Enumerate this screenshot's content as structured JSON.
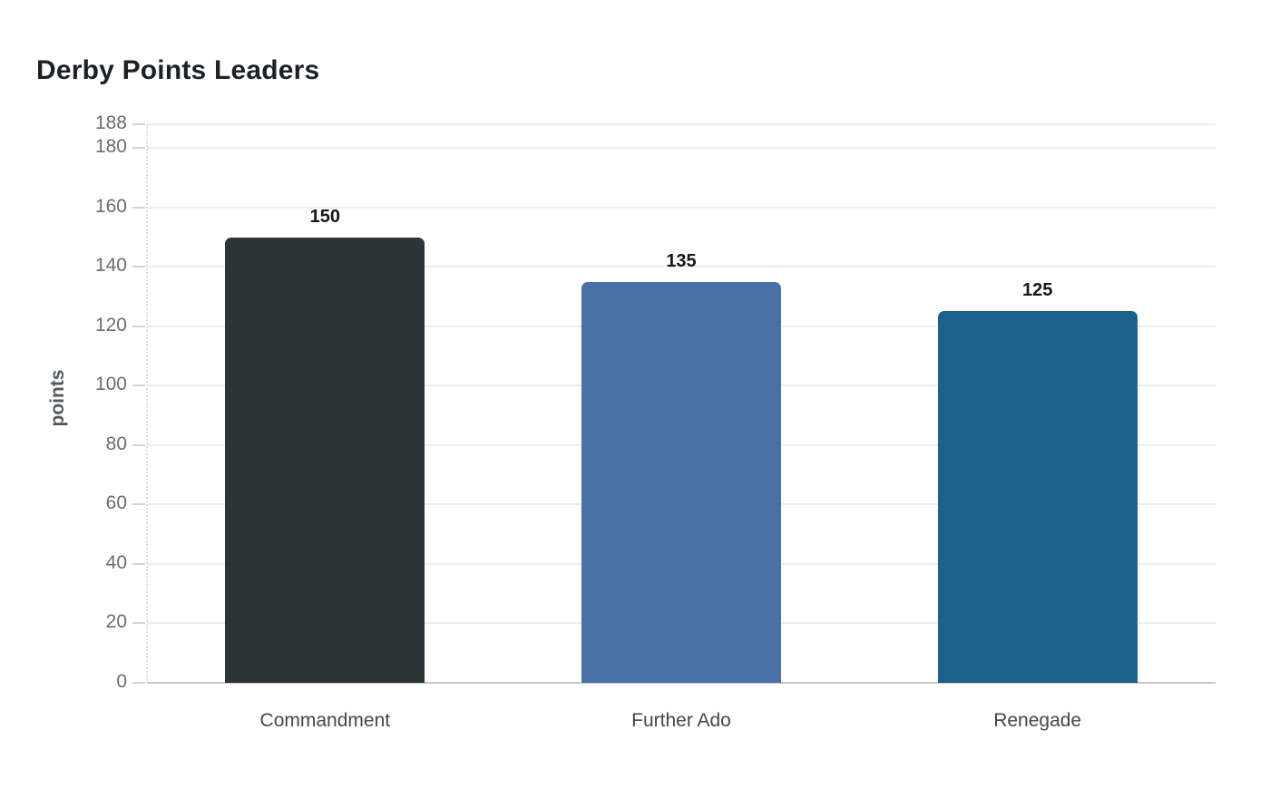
{
  "chart_data": {
    "type": "bar",
    "title": "Derby Points Leaders",
    "xlabel": "",
    "ylabel": "points",
    "categories": [
      "Commandment",
      "Further Ado",
      "Renegade"
    ],
    "values": [
      150,
      135,
      125
    ],
    "bar_colors": [
      "#2b3437",
      "#4a70a8",
      "#1a6289"
    ],
    "value_labels": [
      "150",
      "135",
      "125"
    ],
    "ylim": [
      0,
      188
    ],
    "yticks": [
      0,
      20,
      40,
      60,
      80,
      100,
      120,
      140,
      160,
      180,
      188
    ],
    "grid": true,
    "legend_position": "none",
    "colors": {
      "background": "#ffffff",
      "gridline": "#ededed",
      "axis_line": "#c9c9c9",
      "tick_text": "#686d72",
      "category_text": "#41474e",
      "value_text": "#15181b",
      "title_text": "#1d2126",
      "axis_title_text": "#555a5f"
    }
  }
}
